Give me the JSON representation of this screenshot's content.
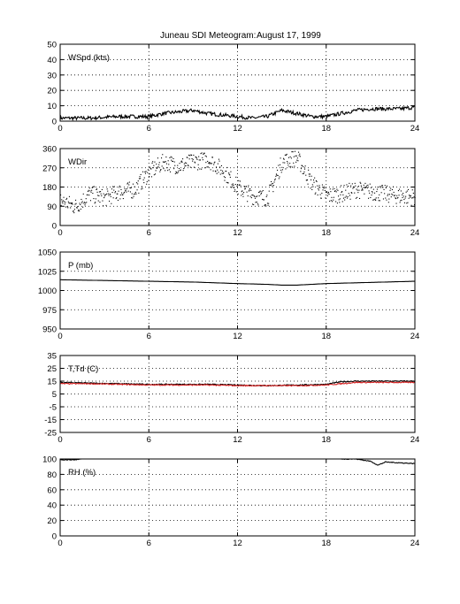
{
  "figure": {
    "title_left": "Juneau SDI Meteogram:",
    "title_right": "August 17, 1999"
  },
  "chart_data": [
    {
      "type": "line",
      "label": "WSpd (kts)",
      "xlim": [
        0,
        24
      ],
      "xticks": [
        0,
        6,
        12,
        18,
        24
      ],
      "ylim": [
        0,
        50
      ],
      "yticks": [
        0,
        10,
        20,
        30,
        40,
        50
      ],
      "grid": true,
      "series": [
        {
          "color": "#000000",
          "style": "line",
          "noise": 1.2,
          "x": [
            0,
            2,
            4,
            6,
            7,
            8,
            9,
            10,
            11,
            12,
            13,
            14,
            15,
            16,
            17,
            18,
            19,
            20,
            21,
            22,
            23,
            24
          ],
          "y": [
            2,
            2,
            3,
            3,
            5,
            6,
            7,
            5,
            4,
            3,
            2,
            3,
            7,
            5,
            3,
            3,
            5,
            7,
            8,
            8,
            8,
            9
          ]
        }
      ]
    },
    {
      "type": "scatter",
      "label": "WDir",
      "xlim": [
        0,
        24
      ],
      "xticks": [
        0,
        6,
        12,
        18,
        24
      ],
      "ylim": [
        0,
        360
      ],
      "yticks": [
        0,
        90,
        180,
        270,
        360
      ],
      "grid": true,
      "series": [
        {
          "color": "#000000",
          "style": "dots",
          "noise": 40,
          "x": [
            0,
            1,
            2,
            3,
            4,
            5,
            6,
            7,
            8,
            9,
            10,
            11,
            12,
            13,
            14,
            15,
            16,
            17,
            18,
            19,
            20,
            21,
            22,
            23,
            24
          ],
          "y": [
            120,
            90,
            150,
            130,
            160,
            170,
            250,
            300,
            280,
            300,
            310,
            260,
            180,
            140,
            130,
            300,
            320,
            200,
            140,
            150,
            170,
            160,
            150,
            140,
            135
          ]
        }
      ]
    },
    {
      "type": "line",
      "label": "P (mb)",
      "xlim": [
        0,
        24
      ],
      "xticks": [
        0,
        6,
        12,
        18,
        24
      ],
      "ylim": [
        950,
        1050
      ],
      "yticks": [
        950,
        975,
        1000,
        1025,
        1050
      ],
      "grid": true,
      "series": [
        {
          "color": "#000000",
          "style": "line",
          "noise": 0,
          "x": [
            0,
            3,
            6,
            9,
            12,
            14,
            15,
            16,
            17,
            18,
            20,
            22,
            24
          ],
          "y": [
            1014,
            1013,
            1012,
            1011,
            1009,
            1008,
            1007,
            1007,
            1008,
            1009,
            1010,
            1011,
            1012
          ]
        }
      ]
    },
    {
      "type": "line",
      "label": "T,Td (C)",
      "xlim": [
        0,
        24
      ],
      "xticks": [
        0,
        6,
        12,
        18,
        24
      ],
      "ylim": [
        -25,
        35
      ],
      "yticks": [
        -25,
        -15,
        -5,
        5,
        15,
        25,
        35
      ],
      "grid": true,
      "series": [
        {
          "color": "#000000",
          "style": "line",
          "noise": 0.4,
          "x": [
            0,
            2,
            4,
            6,
            8,
            10,
            12,
            14,
            16,
            18,
            19,
            20,
            22,
            24
          ],
          "y": [
            14,
            13.5,
            13,
            12.5,
            12.5,
            12.5,
            12,
            11.5,
            12,
            12.5,
            14.5,
            15,
            15,
            15
          ]
        },
        {
          "color": "#d62020",
          "style": "line",
          "noise": 0.4,
          "x": [
            0,
            2,
            4,
            6,
            8,
            10,
            12,
            14,
            16,
            18,
            19,
            20,
            22,
            24
          ],
          "y": [
            13,
            13,
            12.5,
            12,
            12,
            12,
            11.5,
            11.5,
            11.5,
            12,
            13,
            14,
            14,
            14
          ]
        }
      ]
    },
    {
      "type": "line",
      "label": "RH (%)",
      "xlim": [
        0,
        24
      ],
      "xticks": [
        0,
        6,
        12,
        18,
        24
      ],
      "ylim": [
        0,
        100
      ],
      "yticks": [
        0,
        20,
        40,
        60,
        80,
        100
      ],
      "grid": true,
      "series": [
        {
          "color": "#000000",
          "style": "line",
          "noise": 0.5,
          "x": [
            0,
            1,
            1.5,
            2,
            19,
            20,
            21,
            21.5,
            22,
            23,
            24
          ],
          "y": [
            99,
            99,
            100,
            null,
            100,
            100,
            97,
            92,
            96,
            95,
            94
          ]
        }
      ]
    }
  ]
}
